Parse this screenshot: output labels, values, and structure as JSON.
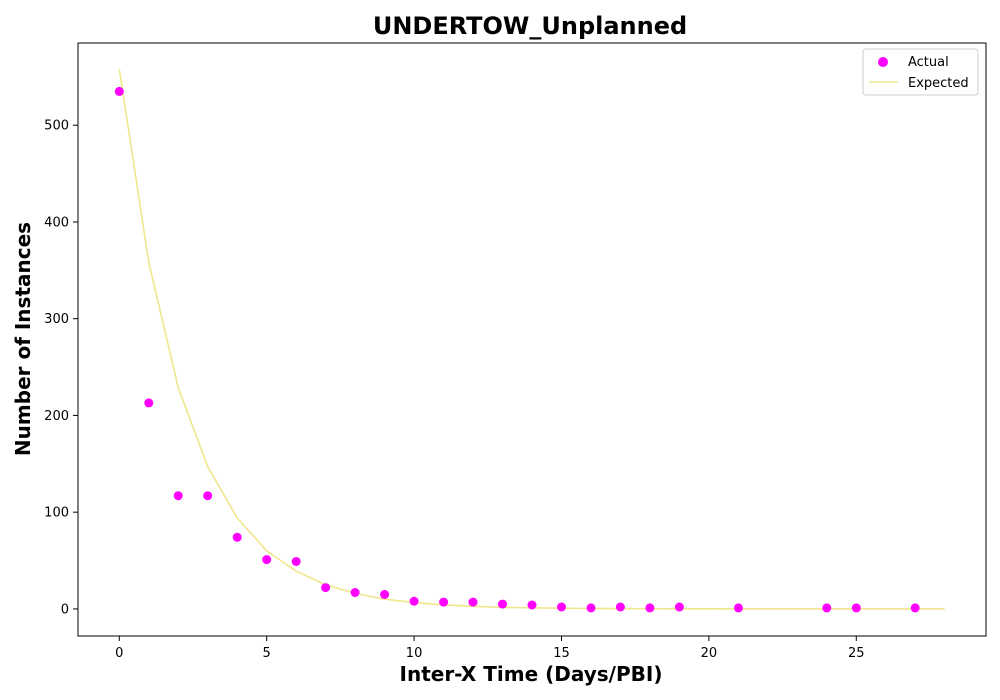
{
  "chart_data": {
    "type": "scatter",
    "title": "UNDERTOW_Unplanned",
    "xlabel": "Inter-X Time (Days/PBI)",
    "ylabel": "Number of Instances",
    "xlim": [
      -1.4,
      29.4
    ],
    "ylim": [
      -28,
      585
    ],
    "xticks": [
      0,
      5,
      10,
      15,
      20,
      25
    ],
    "yticks": [
      0,
      100,
      200,
      300,
      400,
      500
    ],
    "grid": false,
    "legend_position": "top-right",
    "series": [
      {
        "name": "Actual",
        "kind": "scatter",
        "color": "#ff00ff",
        "x": [
          0,
          1,
          2,
          3,
          4,
          5,
          6,
          7,
          8,
          9,
          10,
          11,
          12,
          13,
          14,
          15,
          16,
          17,
          18,
          19,
          21,
          24,
          25,
          27
        ],
        "y": [
          535,
          213,
          117,
          117,
          74,
          51,
          49,
          22,
          17,
          15,
          8,
          7,
          7,
          5,
          4,
          2,
          1,
          2,
          1,
          2,
          1,
          1,
          1,
          1
        ]
      },
      {
        "name": "Expected",
        "kind": "line",
        "color": "#f0e68c",
        "x": [
          0,
          1,
          2,
          3,
          4,
          5,
          6,
          7,
          8,
          9,
          10,
          11,
          12,
          13,
          14,
          15,
          16,
          17,
          18,
          19,
          20,
          21,
          22,
          23,
          24,
          25,
          26,
          27,
          28
        ],
        "y": [
          558,
          358,
          229,
          147,
          94,
          60,
          39,
          25,
          16,
          10,
          6.5,
          4.2,
          2.7,
          1.7,
          1.1,
          0.7,
          0.45,
          0.29,
          0.18,
          0.12,
          0.08,
          0.05,
          0.03,
          0.02,
          0.01,
          0.01,
          0.0,
          0.0,
          0.0
        ]
      }
    ]
  }
}
